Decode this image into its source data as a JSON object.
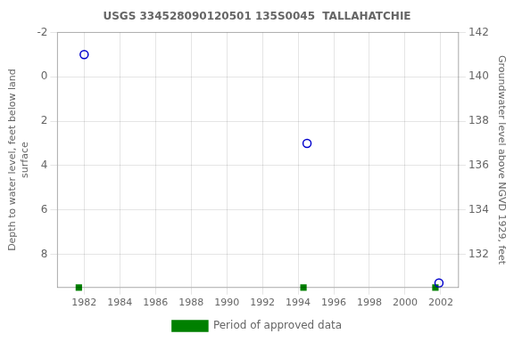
{
  "chart_data": {
    "type": "scatter",
    "title": "USGS 334528090120501 135S0045  TALLAHATCHIE",
    "ylabel": "Depth to water level, feet below land\nsurface",
    "y2label": "Groundwater level above NGVD 1929, feet",
    "xlim": [
      1980.5,
      2003.0
    ],
    "xticks": [
      1982,
      1984,
      1986,
      1988,
      1990,
      1992,
      1994,
      1996,
      1998,
      2000,
      2002
    ],
    "ylim": [
      9.5,
      -2
    ],
    "yticks": [
      -2,
      0,
      2,
      4,
      6,
      8
    ],
    "y2lim": [
      130.5,
      142
    ],
    "y2ticks": [
      142,
      140,
      138,
      136,
      134,
      132
    ],
    "series": [
      {
        "x": [
          1982.0,
          1994.5,
          2001.9
        ],
        "values": [
          -1.0,
          3.0,
          9.3
        ],
        "color": "#0000cc",
        "marker": "circle"
      },
      {
        "name": "Period of approved data",
        "x": [
          1981.7,
          1994.3,
          2001.7
        ],
        "values": [
          9.5,
          9.5,
          9.5
        ],
        "color": "#008000",
        "marker": "square"
      }
    ],
    "grid": true,
    "legend": "bottom"
  }
}
